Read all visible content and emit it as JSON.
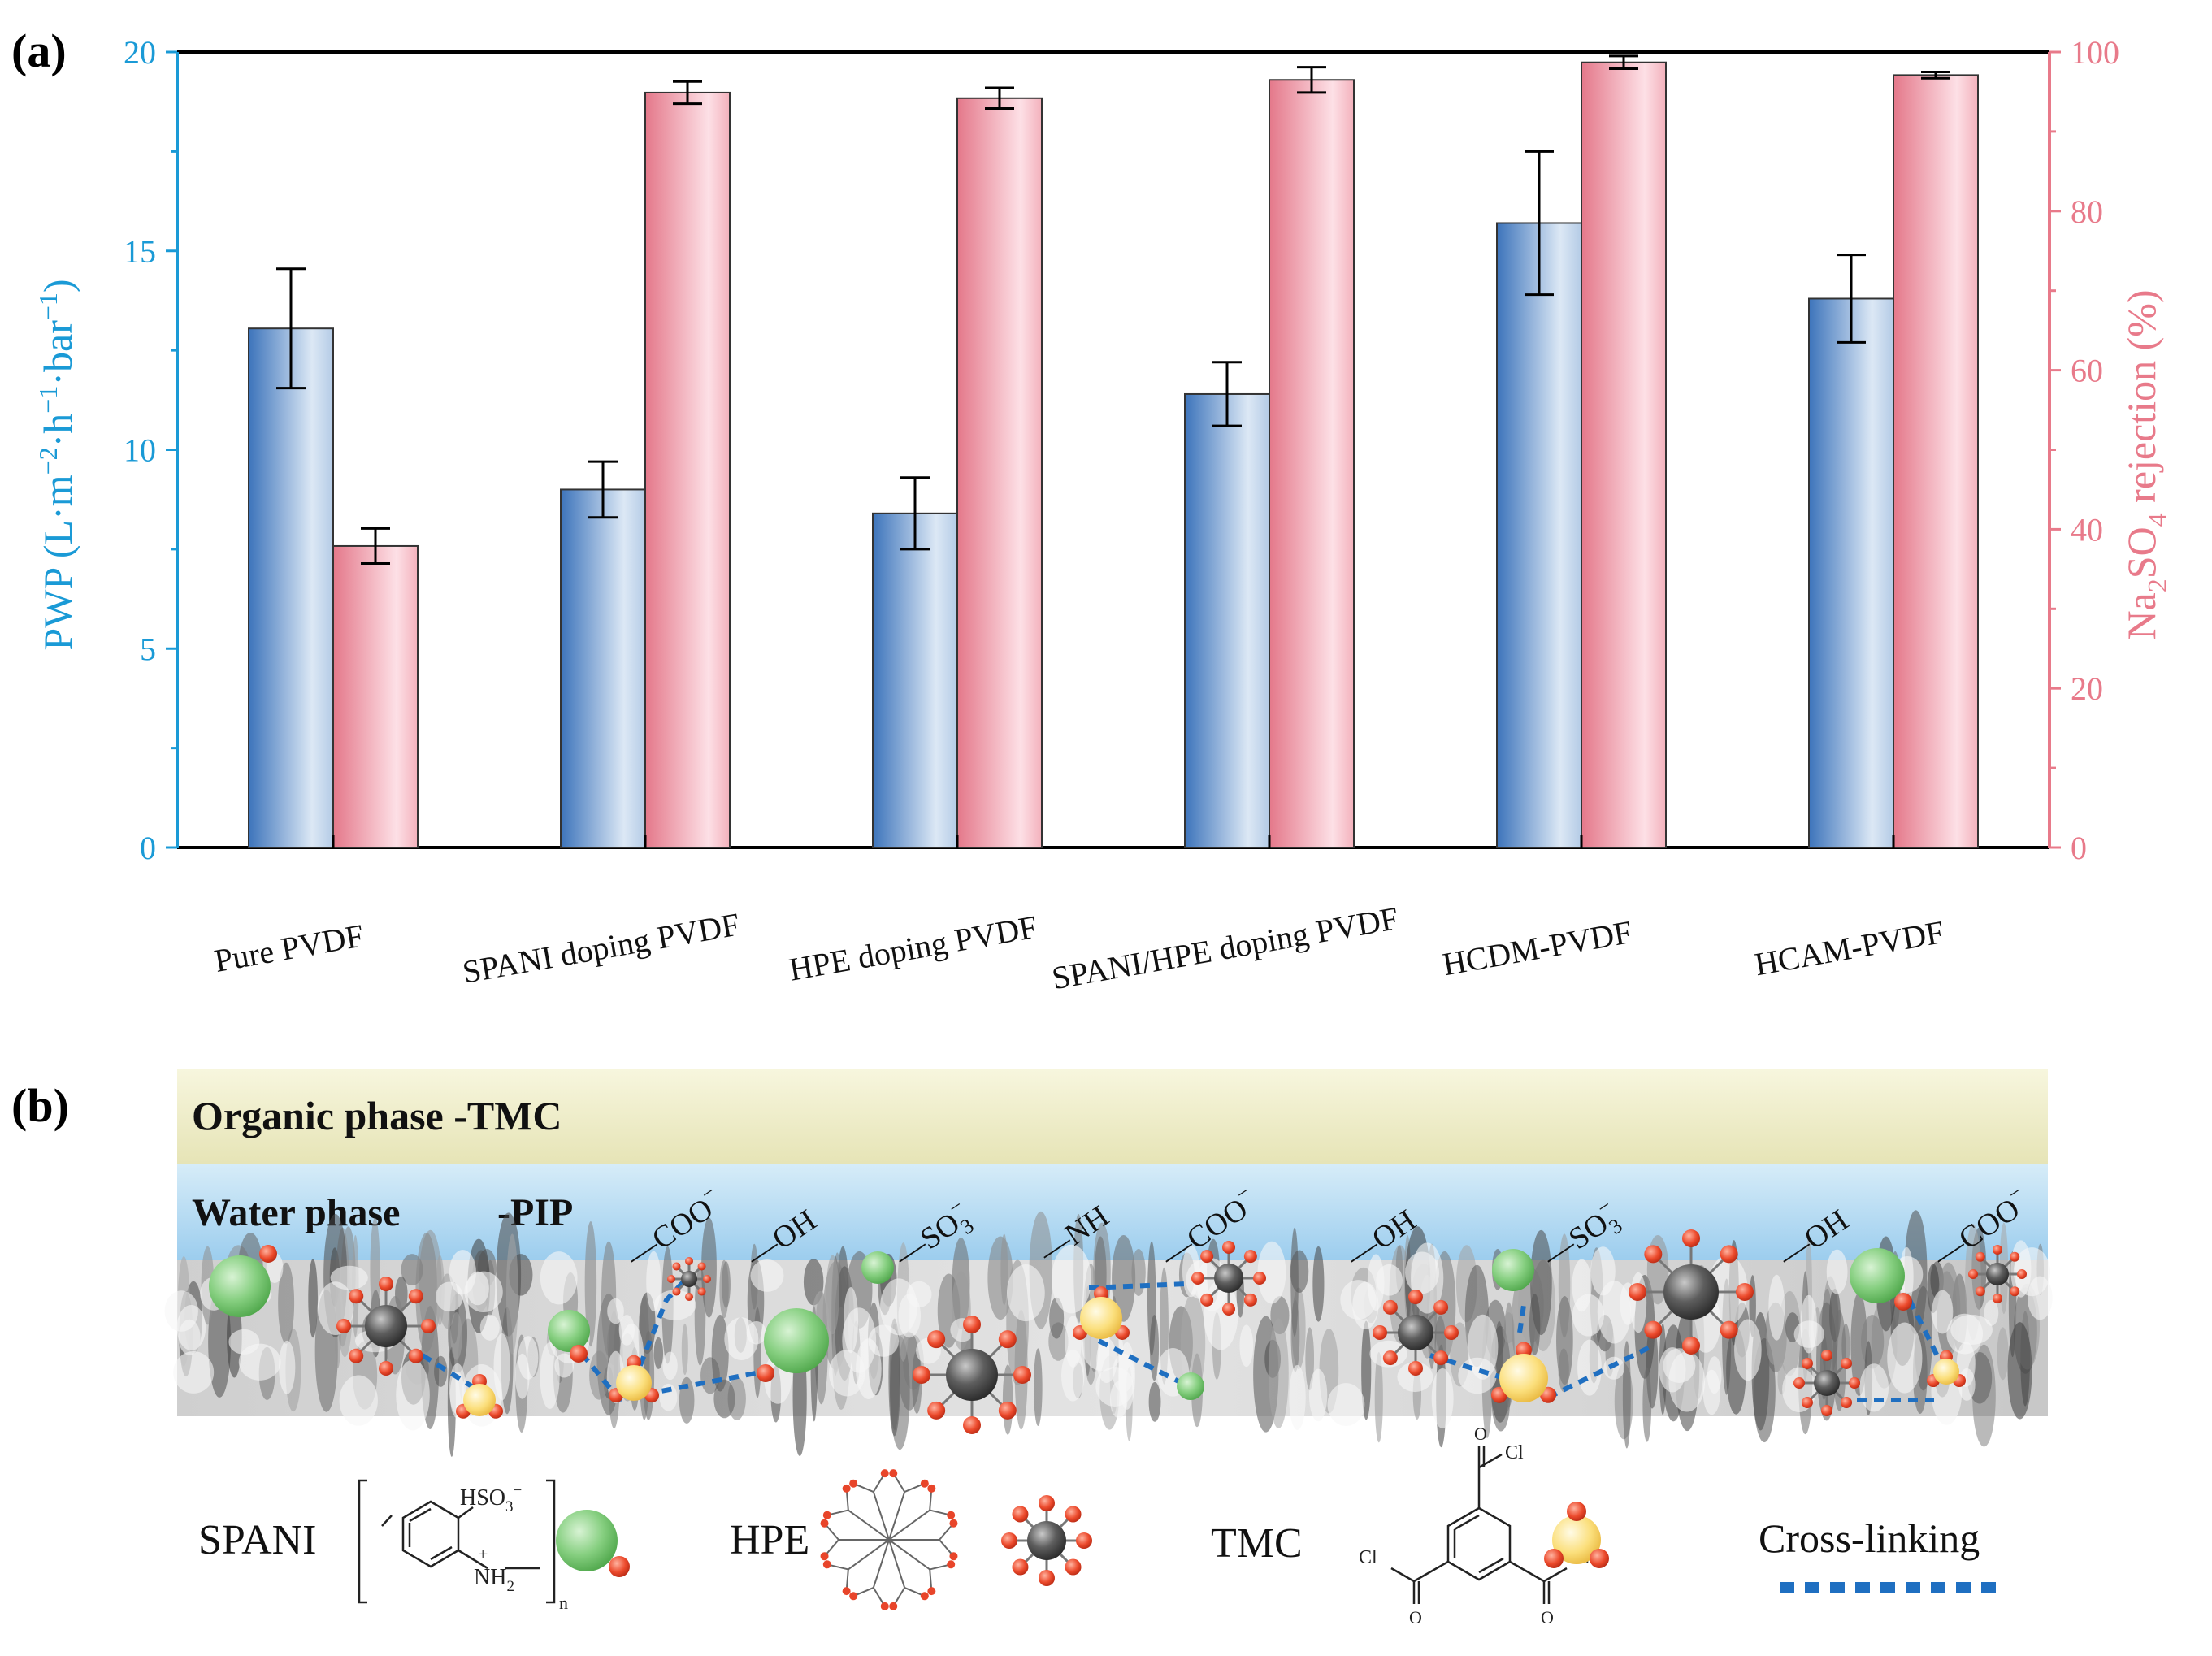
{
  "panel_a": {
    "label": "(a)"
  },
  "panel_b": {
    "label": "(b)",
    "organic_phase": "Organic phase -TMC",
    "water_phase": "Water phase",
    "water_phase_pip": "-PIP",
    "group_labels": [
      {
        "base": "—COO",
        "sup": "−",
        "sub": ""
      },
      {
        "base": "—OH",
        "sup": "",
        "sub": ""
      },
      {
        "base": "—SO",
        "sup": "−",
        "sub": "3"
      },
      {
        "base": "—NH",
        "sup": "",
        "sub": ""
      },
      {
        "base": "—COO",
        "sup": "−",
        "sub": ""
      },
      {
        "base": "—OH",
        "sup": "",
        "sub": ""
      },
      {
        "base": "—SO",
        "sup": "−",
        "sub": "3"
      },
      {
        "base": "—OH",
        "sup": "",
        "sub": ""
      },
      {
        "base": "—COO",
        "sup": "−",
        "sub": ""
      }
    ],
    "legend": {
      "spani": "SPANI",
      "spani_group": "HSO",
      "spani_group_sub": "3",
      "spani_group_sup": "−",
      "spani_amine": "NH",
      "spani_amine_sub": "2",
      "spani_amine_charge": "+",
      "spani_n": "n",
      "hpe": "HPE",
      "tmc": "TMC",
      "cl": "Cl",
      "o": "O",
      "crosslinking": "Cross-linking"
    },
    "colors": {
      "organic_band": "#f0efcf",
      "water_band": "#bfe0f3",
      "spani_sphere": "#7cc87a",
      "hpe_core": "#555555",
      "tmc_sphere": "#f7d66b",
      "end_group": "#e8452a",
      "crosslink": "#1f6fc1"
    }
  },
  "chart_data": {
    "type": "bar",
    "title": "",
    "categories": [
      "Pure PVDF",
      "SPANI doping PVDF",
      "HPE doping PVDF",
      "SPANI/HPE doping PVDF",
      "HCDM-PVDF",
      "HCAM-PVDF"
    ],
    "series": [
      {
        "name": "PWP",
        "axis": "left",
        "color": "#4a82c3",
        "values": [
          13.05,
          9.0,
          8.4,
          11.4,
          15.7,
          13.8
        ],
        "errors": [
          1.5,
          0.7,
          0.9,
          0.8,
          1.8,
          1.1
        ]
      },
      {
        "name": "Na2SO4 rejection",
        "axis": "right",
        "color": "#e47b8b",
        "values": [
          37.9,
          94.9,
          94.2,
          96.5,
          98.7,
          97.1
        ],
        "errors": [
          2.2,
          1.4,
          1.3,
          1.6,
          0.8,
          0.4
        ]
      }
    ],
    "ylabel": {
      "base": "PWP (L·m",
      "s1": "−2",
      "mid1": "·h",
      "s2": "−1",
      "mid2": "·bar",
      "s3": "−1",
      "end": ")"
    },
    "y2label": {
      "pre": "Na",
      "sub1": "2",
      "mid": "SO",
      "sub2": "4",
      "post": " rejection (%)"
    },
    "ylim": [
      0,
      20
    ],
    "y2lim": [
      0,
      100
    ],
    "yticks": [
      "0",
      "5",
      "10",
      "15",
      "20"
    ],
    "y2ticks": [
      "0",
      "20",
      "40",
      "60",
      "80",
      "100"
    ],
    "left_axis_color": "#1a9ad6",
    "right_axis_color": "#e87a8a"
  }
}
